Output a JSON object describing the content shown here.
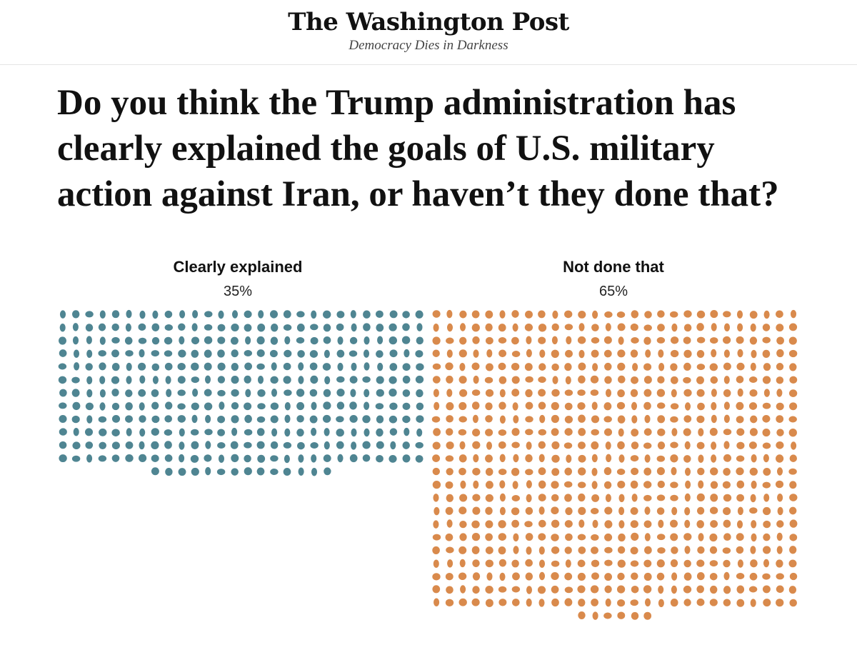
{
  "masthead": {
    "name": "The Washington Post",
    "tagline": "Democracy Dies in Darkness"
  },
  "chart_data": {
    "type": "dot-matrix",
    "title": "Do you think the Trump administration has clearly explained the goals of U.S. military action against Iran, or haven’t they done that?",
    "categories": [
      "Clearly explained",
      "Not done that"
    ],
    "value_labels": [
      "35%",
      "65%"
    ],
    "values": [
      35,
      65
    ],
    "colors": [
      "#4f8592",
      "#d98a4c"
    ],
    "dots_per_percent": 10
  }
}
